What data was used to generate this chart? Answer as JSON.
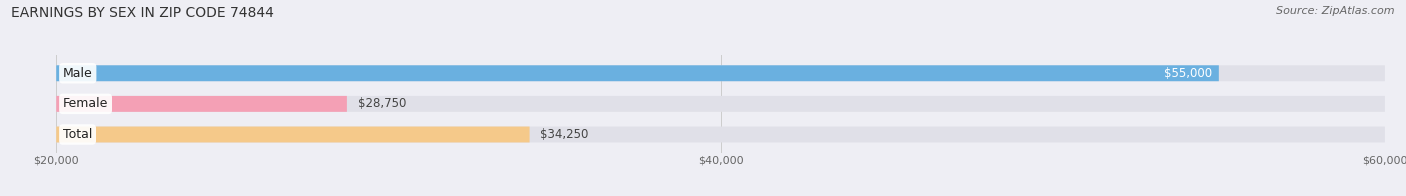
{
  "title": "EARNINGS BY SEX IN ZIP CODE 74844",
  "source": "Source: ZipAtlas.com",
  "categories": [
    "Male",
    "Female",
    "Total"
  ],
  "values": [
    55000,
    28750,
    34250
  ],
  "bar_colors": [
    "#6ab0e0",
    "#f4a0b5",
    "#f5c98a"
  ],
  "value_labels": [
    "$55,000",
    "$28,750",
    "$34,250"
  ],
  "xmin": 20000,
  "xmax": 60000,
  "xticks": [
    20000,
    40000,
    60000
  ],
  "xtick_labels": [
    "$20,000",
    "$40,000",
    "$60,000"
  ],
  "background_color": "#eeeef4",
  "bar_background_color": "#e0e0e8",
  "title_fontsize": 10,
  "source_fontsize": 8,
  "value_label_fontsize": 8.5,
  "category_label_fontsize": 9
}
